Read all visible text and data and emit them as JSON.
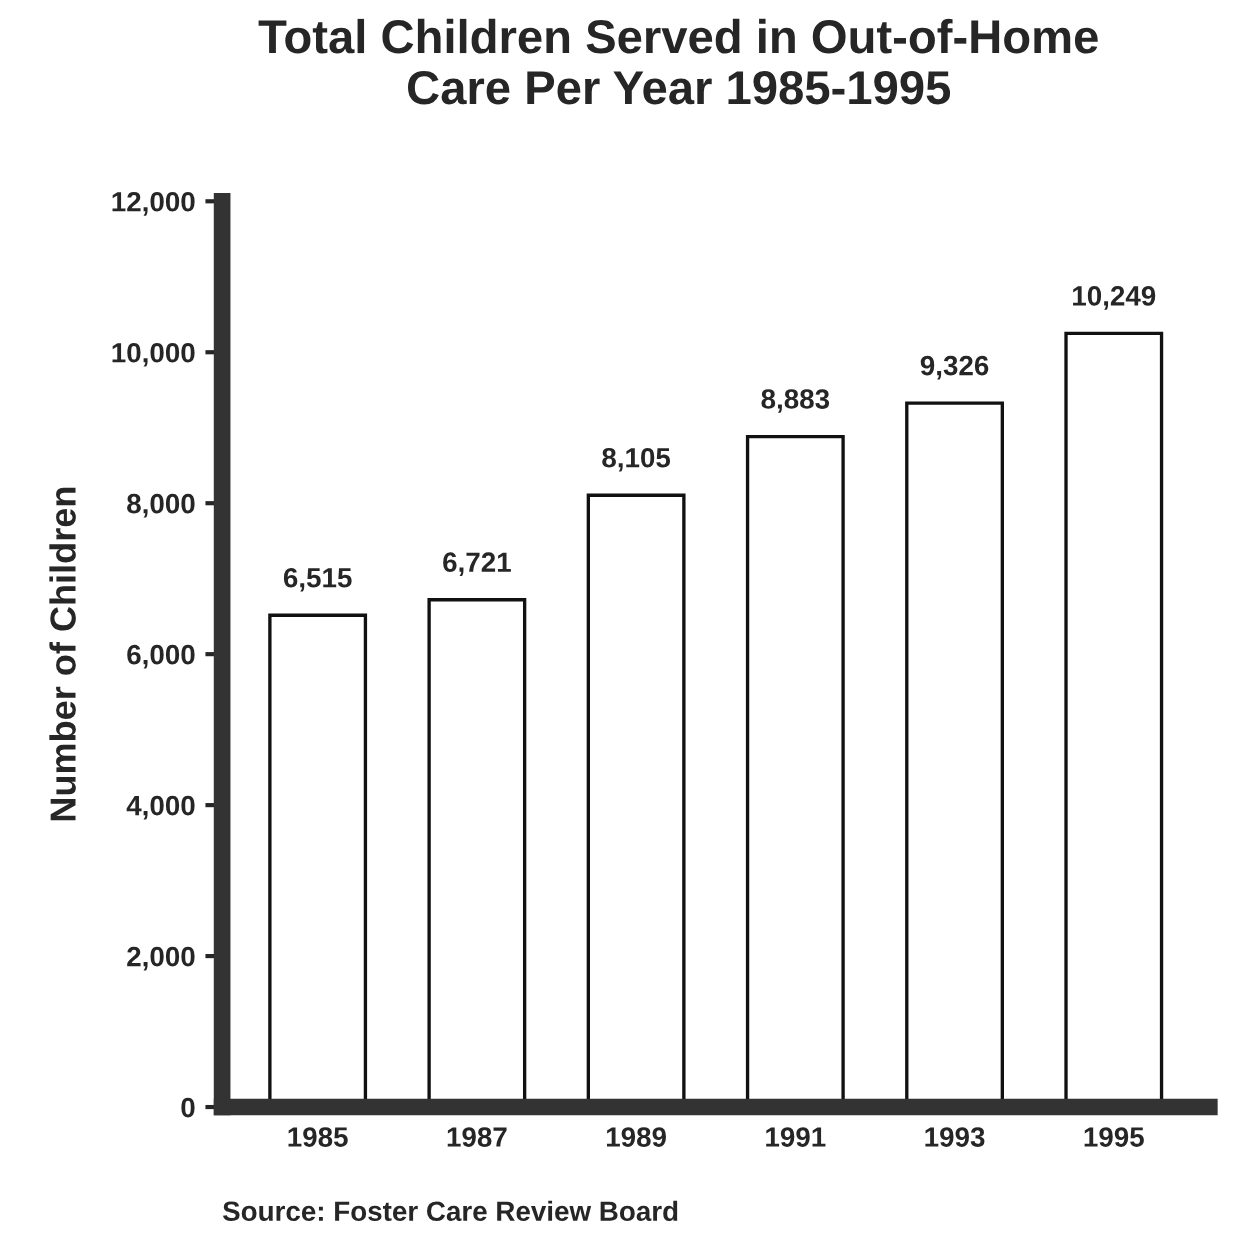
{
  "chart_data": {
    "type": "bar",
    "title": "Total Children Served in Out-of-Home\nCare Per Year 1985-1995",
    "ylabel": "Number of Children",
    "categories": [
      "1985",
      "1987",
      "1989",
      "1991",
      "1993",
      "1995"
    ],
    "values": [
      6515,
      6721,
      8105,
      8883,
      9326,
      10249
    ],
    "value_labels": [
      "6,515",
      "6,721",
      "8,105",
      "8,883",
      "9,326",
      "10,249"
    ],
    "color": "#ffffff",
    "ylim": [
      0,
      12000
    ],
    "yticks": [
      {
        "value": 0,
        "label": "0"
      },
      {
        "value": 2000,
        "label": "2,000"
      },
      {
        "value": 4000,
        "label": "4,000"
      },
      {
        "value": 6000,
        "label": "6,000"
      },
      {
        "value": 8000,
        "label": "8,000"
      },
      {
        "value": 10000,
        "label": "10,000"
      },
      {
        "value": 12000,
        "label": "12,000"
      }
    ],
    "grid": false,
    "annotations": [
      "Source: Foster Care Review Board"
    ]
  }
}
